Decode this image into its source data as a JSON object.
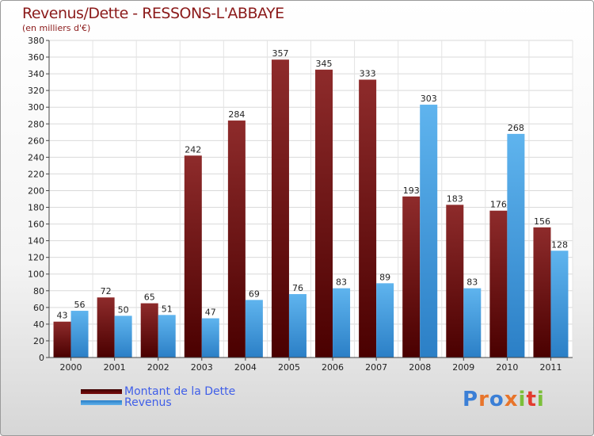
{
  "title": "Revenus/Dette - RESSONS-L'ABBAYE",
  "subtitle": "(en milliers d'€)",
  "legend": {
    "debt": "Montant de la Dette",
    "revenue": "Revenus"
  },
  "logo": "Proxiti",
  "colors": {
    "debt": "#7a1a1a",
    "revenue": "#4aa3e3",
    "text": "#8b1a1a",
    "legend_text": "#3f5ee8"
  },
  "chart_data": {
    "type": "bar",
    "title": "Revenus/Dette - RESSONS-L'ABBAYE",
    "ylabel": "(en milliers d'€)",
    "xlabel": "",
    "ylim": [
      0,
      380
    ],
    "ytick_step": 20,
    "grid": true,
    "legend_position": "bottom-left",
    "categories": [
      "2000",
      "2001",
      "2002",
      "2003",
      "2004",
      "2005",
      "2006",
      "2007",
      "2008",
      "2009",
      "2010",
      "2011"
    ],
    "series": [
      {
        "name": "Montant de la Dette",
        "values": [
          43,
          72,
          65,
          242,
          284,
          357,
          345,
          333,
          193,
          183,
          176,
          156
        ]
      },
      {
        "name": "Revenus",
        "values": [
          56,
          50,
          51,
          47,
          69,
          76,
          83,
          89,
          303,
          83,
          268,
          128
        ]
      }
    ]
  }
}
